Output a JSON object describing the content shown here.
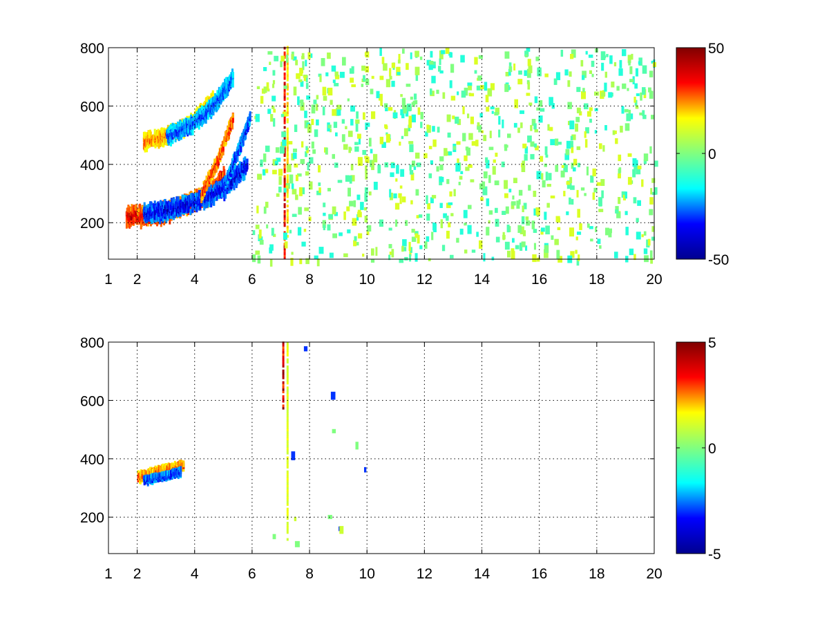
{
  "colormap": "jet",
  "colormap_stops": [
    "#00008f",
    "#0000ff",
    "#00ffff",
    "#80ff80",
    "#ffff00",
    "#ff0000",
    "#800000"
  ],
  "chart_data": [
    {
      "type": "heatmap",
      "title": "",
      "xlabel": "",
      "ylabel": "",
      "xlim": [
        1,
        20
      ],
      "ylim": [
        75,
        800
      ],
      "x_ticks": [
        1,
        2,
        4,
        6,
        8,
        10,
        12,
        14,
        16,
        18,
        20
      ],
      "x_tick_labels": [
        "1",
        "2",
        "4",
        "6",
        "8",
        "10",
        "12",
        "14",
        "16",
        "18",
        "20"
      ],
      "y_ticks": [
        200,
        400,
        600,
        800
      ],
      "y_tick_labels": [
        "200",
        "400",
        "600",
        "800"
      ],
      "grid": true,
      "colorbar": {
        "min": -50,
        "max": 50,
        "ticks": [
          -50,
          0,
          50
        ],
        "tick_labels": [
          "-50",
          "0",
          "50"
        ]
      },
      "features": [
        {
          "kind": "ridge",
          "x": [
            1.6,
            2.5,
            3.5,
            4.5,
            5.0
          ],
          "y": [
            225,
            228,
            255,
            300,
            360
          ],
          "value": 45,
          "width": 22
        },
        {
          "kind": "ridge",
          "x": [
            2.2,
            3.0,
            4.0,
            5.0,
            5.8
          ],
          "y": [
            235,
            245,
            275,
            320,
            400
          ],
          "value": -45,
          "width": 20
        },
        {
          "kind": "ridge",
          "x": [
            2.2,
            3.0,
            3.8,
            4.6
          ],
          "y": [
            480,
            500,
            540,
            620
          ],
          "value": 30,
          "width": 18
        },
        {
          "kind": "ridge",
          "x": [
            3.0,
            3.8,
            4.6,
            5.3
          ],
          "y": [
            500,
            535,
            600,
            700
          ],
          "value": -35,
          "width": 18
        },
        {
          "kind": "ridge",
          "x": [
            4.2,
            4.8,
            5.3
          ],
          "y": [
            300,
            420,
            560
          ],
          "value": 38,
          "width": 14
        },
        {
          "kind": "ridge",
          "x": [
            5.0,
            5.5,
            5.9
          ],
          "y": [
            330,
            450,
            560
          ],
          "value": -40,
          "width": 14
        },
        {
          "kind": "line",
          "x": 7.1,
          "y0": 75,
          "y1": 800,
          "value": 42
        },
        {
          "kind": "line",
          "x": 7.2,
          "y0": 150,
          "y1": 800,
          "value": 20
        }
      ],
      "sparse_region": {
        "x0": 6,
        "x1": 20,
        "y0": 75,
        "y1": 800,
        "values": [
          -12,
          -6,
          0,
          6,
          12
        ]
      }
    },
    {
      "type": "heatmap",
      "title": "",
      "xlabel": "",
      "ylabel": "",
      "xlim": [
        1,
        20
      ],
      "ylim": [
        75,
        800
      ],
      "x_ticks": [
        1,
        2,
        4,
        6,
        8,
        10,
        12,
        14,
        16,
        18,
        20
      ],
      "x_tick_labels": [
        "1",
        "2",
        "4",
        "6",
        "8",
        "10",
        "12",
        "14",
        "16",
        "18",
        "20"
      ],
      "y_ticks": [
        200,
        400,
        600,
        800
      ],
      "y_tick_labels": [
        "200",
        "400",
        "600",
        "800"
      ],
      "grid": true,
      "colorbar": {
        "min": -5,
        "max": 5,
        "ticks": [
          -5,
          0,
          5
        ],
        "tick_labels": [
          "-5",
          "0",
          "5"
        ]
      },
      "features": [
        {
          "kind": "ridge",
          "x": [
            2.0,
            2.8,
            3.6
          ],
          "y": [
            340,
            360,
            380
          ],
          "value": 3.5,
          "width": 10
        },
        {
          "kind": "ridge",
          "x": [
            2.2,
            3.0,
            3.5
          ],
          "y": [
            330,
            345,
            360
          ],
          "value": -4.0,
          "width": 6
        },
        {
          "kind": "line",
          "x": 7.05,
          "y0": 570,
          "y1": 800,
          "value": 4.5
        },
        {
          "kind": "line",
          "x": 7.2,
          "y0": 120,
          "y1": 800,
          "value": 1.5
        }
      ],
      "sparse_region": {
        "x0": 6,
        "x1": 10,
        "y0": 75,
        "y1": 800,
        "values": [
          -3,
          0,
          1
        ]
      }
    }
  ]
}
